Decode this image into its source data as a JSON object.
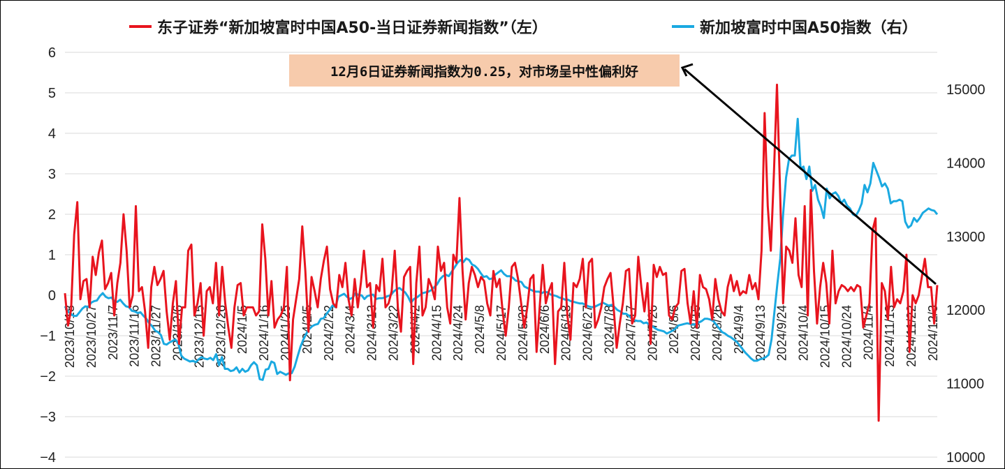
{
  "chart_data": {
    "type": "line",
    "title": "",
    "legend_position": "top",
    "grid": true,
    "annotation": "12月6日证券新闻指数为0.25，对市场呈中性偏利好",
    "y_left": {
      "ylim": [
        -4,
        6
      ],
      "ticks": [
        "6",
        "5",
        "4",
        "3",
        "2",
        "1",
        "0",
        "−1",
        "−2",
        "−3",
        "−4"
      ]
    },
    "y_right": {
      "ylim": [
        10000,
        15500
      ],
      "ticks": [
        "15000",
        "14000",
        "13000",
        "12000",
        "11000",
        "10000"
      ]
    },
    "x_tick_labels": [
      "2023/10/18",
      "2023/10/27",
      "2023/11/7",
      "2023/11/16",
      "2023/11/27",
      "2023/12/6",
      "2023/12/15",
      "2023/12/26",
      "2024/1/5",
      "2024/1/16",
      "2024/1/25",
      "2024/2/5",
      "2024/2/22",
      "2024/3/4",
      "2024/3/13",
      "2024/3/22",
      "2024/4/2",
      "2024/4/15",
      "2024/4/24",
      "2024/5/8",
      "2024/5/17",
      "2024/5/28",
      "2024/6/6",
      "2024/6/18",
      "2024/6/27",
      "2024/7/8",
      "2024/7/17",
      "2024/7/26",
      "2024/8/6",
      "2024/8/15",
      "2024/8/26",
      "2024/9/4",
      "2024/9/13",
      "2024/9/24",
      "2024/10/4",
      "2024/10/15",
      "2024/10/24",
      "2024/11/4",
      "2024/11/13",
      "2024/11/22",
      "2024/12/3"
    ],
    "series": [
      {
        "name": "东子证券“新加坡富时中国A50-当日证券新闻指数”（左）",
        "axis": "left",
        "color": "#e8141e",
        "values": [
          0.05,
          -0.75,
          -0.35,
          1.5,
          2.3,
          -0.1,
          0.35,
          0.4,
          -0.3,
          0.95,
          0.5,
          1.05,
          1.35,
          0.15,
          0.3,
          0.55,
          -0.5,
          0.3,
          0.8,
          2.0,
          1.1,
          -0.3,
          0.0,
          2.2,
          0.1,
          0.2,
          -0.4,
          -1.3,
          0.2,
          0.7,
          0.25,
          0.4,
          0.6,
          -0.4,
          -1.1,
          -0.2,
          0.35,
          -1.2,
          -0.3,
          -0.3,
          1.1,
          1.25,
          -0.5,
          -0.2,
          0.3,
          -1.0,
          0.1,
          0.2,
          -0.2,
          0.8,
          -0.5,
          0.7,
          -0.2,
          -0.8,
          -1.3,
          -0.3,
          0.25,
          0.3,
          -0.5,
          -0.3,
          -0.3,
          -0.3,
          -0.5,
          -0.4,
          1.75,
          0.9,
          -0.5,
          0.35,
          -0.8,
          -0.6,
          -0.5,
          -0.3,
          0.7,
          -2.1,
          -0.6,
          -0.1,
          0.4,
          1.7,
          0.6,
          -0.9,
          0.45,
          0.1,
          -0.3,
          0.4,
          0.85,
          1.2,
          0.15,
          -0.2,
          -0.3,
          0.5,
          0.2,
          0.8,
          -0.1,
          -0.5,
          0.4,
          -0.3,
          0.3,
          1.1,
          0.2,
          0.3,
          -0.8,
          0.25,
          0.1,
          0.9,
          -0.3,
          -0.2,
          0.1,
          1.1,
          -0.3,
          -0.9,
          0.45,
          0.6,
          0.7,
          -1.7,
          0.3,
          1.2,
          -0.5,
          -0.3,
          0.4,
          0.2,
          -0.1,
          1.2,
          0.6,
          0.8,
          -0.3,
          -0.7,
          1.0,
          0.8,
          2.4,
          0.6,
          -0.6,
          0.3,
          0.7,
          0.5,
          0.2,
          0.45,
          0.35,
          -0.2,
          -0.5,
          0.6,
          0.2,
          0.4,
          -0.4,
          -1.0,
          -0.3,
          0.7,
          0.8,
          0.4,
          -0.2,
          -0.8,
          -0.3,
          0.4,
          0.5,
          -1.4,
          -0.3,
          0.75,
          -0.2,
          0.1,
          0.3,
          -1.7,
          -0.4,
          -0.3,
          0.8,
          -0.5,
          -1.1,
          0.3,
          0.2,
          0.4,
          0.9,
          -0.3,
          0.8,
          0.9,
          -0.8,
          -0.6,
          -0.3,
          0.2,
          0.4,
          0.55,
          -0.3,
          -1.3,
          -0.7,
          -0.2,
          0.6,
          0.65,
          -0.7,
          -0.5,
          0.95,
          0.2,
          -0.4,
          0.3,
          -1.2,
          0.75,
          0.45,
          0.7,
          0.5,
          0.55,
          -0.5,
          -0.6,
          -0.3,
          -0.2,
          0.6,
          0.65,
          -0.2,
          -0.7,
          0.1,
          -0.8,
          0.5,
          0.2,
          0.15,
          -0.1,
          -0.6,
          0.4,
          -0.1,
          -0.4,
          -0.5,
          0.2,
          0.5,
          0.1,
          0.35,
          0.0,
          0.1,
          0.05,
          0.5,
          0.15,
          0.3,
          -0.1,
          1.1,
          4.5,
          2.2,
          1.1,
          3.0,
          5.2,
          2.6,
          -0.2,
          1.2,
          1.1,
          0.8,
          1.9,
          0.5,
          0.2,
          2.2,
          -0.5,
          2.6,
          0.6,
          -0.7,
          0.2,
          0.8,
          0.3,
          -0.7,
          1.1,
          -0.2,
          0.1,
          0.25,
          0.2,
          0.1,
          0.2,
          0.1,
          0.25,
          0.2,
          -0.8,
          -0.5,
          -0.2,
          1.6,
          1.9,
          -3.1,
          0.3,
          0.1,
          -0.6,
          0.7,
          -0.3,
          -0.1,
          -0.2,
          0.1,
          1.0,
          -1.4,
          0.0,
          -0.2,
          0.0,
          0.45,
          0.9,
          0.2,
          0.2,
          -0.7,
          0.25
        ]
      },
      {
        "name": "新加坡富时中国A50指数（右）",
        "axis": "right",
        "color": "#1aa9e1",
        "values": [
          12050,
          11980,
          11950,
          11920,
          11920,
          11970,
          12020,
          12050,
          12040,
          12100,
          12120,
          12130,
          12190,
          12230,
          12180,
          12160,
          12170,
          12120,
          12110,
          12140,
          12090,
          12050,
          12040,
          11990,
          11980,
          11960,
          11970,
          11920,
          11880,
          11820,
          11780,
          11720,
          11700,
          11660,
          11540,
          11530,
          11560,
          11580,
          11600,
          11540,
          11380,
          11340,
          11320,
          11300,
          11310,
          11290,
          11330,
          11360,
          11340,
          11330,
          11350,
          11320,
          11400,
          11250,
          11360,
          11200,
          11200,
          11170,
          11180,
          11220,
          11150,
          11200,
          11160,
          11180,
          11250,
          11290,
          11250,
          11060,
          11050,
          11190,
          11200,
          11300,
          11280,
          11130,
          11160,
          11140,
          11120,
          11140,
          11140,
          11230,
          11370,
          11500,
          11600,
          11680,
          11740,
          11780,
          11800,
          11810,
          11880,
          11890,
          11950,
          12000,
          12060,
          12040,
          12180,
          12200,
          12220,
          12180,
          12150,
          12170,
          12230,
          12200,
          12200,
          12150,
          12190,
          12200,
          12210,
          12150,
          12160,
          12160,
          12170,
          12190,
          12200,
          12250,
          12280,
          12300,
          12270,
          12240,
          12180,
          12100,
          12150,
          12170,
          12200,
          12230,
          12240,
          12250,
          12270,
          12310,
          12350,
          12420,
          12460,
          12480,
          12460,
          12520,
          12580,
          12640,
          12680,
          12650,
          12700,
          12680,
          12620,
          12600,
          12560,
          12500,
          12450,
          12460,
          12420,
          12430,
          12480,
          12510,
          12540,
          12490,
          12460,
          12460,
          12440,
          12400,
          12390,
          12380,
          12320,
          12300,
          12280,
          12260,
          12250,
          12250,
          12230,
          12250,
          12240,
          12210,
          12200,
          12190,
          12170,
          12160,
          12140,
          12140,
          12120,
          12110,
          12100,
          12090,
          12090,
          12070,
          12050,
          12040,
          12040,
          12060,
          12080,
          12100,
          12080,
          12060,
          12070,
          12040,
          12000,
          11980,
          11950,
          11950,
          11920,
          11880,
          11860,
          11850,
          11850,
          11820,
          11830,
          11800,
          11780,
          11750,
          11730,
          11720,
          11710,
          11680,
          11700,
          11720,
          11750,
          11790,
          11800,
          11810,
          11820,
          11810,
          11800,
          11810,
          11830,
          11850,
          11880,
          11880,
          11870,
          11850,
          11800,
          11750,
          11700,
          11680,
          11650,
          11630,
          11600,
          11570,
          11520,
          11470,
          11420,
          11380,
          11340,
          11310,
          11310,
          11330,
          11340,
          11360,
          11390,
          11600,
          11980,
          12350,
          12700,
          13300,
          13800,
          14050,
          14100,
          14100,
          14600,
          13920,
          13950,
          13780,
          13950,
          13620,
          13700,
          13500,
          13400,
          13250,
          13650,
          13520,
          13580,
          13600,
          13550,
          13450,
          13500,
          13420,
          13380,
          13300,
          13280,
          13350,
          13450,
          13700,
          13600,
          13720,
          14000,
          13900,
          13800,
          13680,
          13720,
          13650,
          13450,
          13480,
          13480,
          13500,
          13480,
          13200,
          13120,
          13150,
          13250,
          13200,
          13250,
          13320,
          13350,
          13380,
          13360,
          13350,
          13300
        ]
      }
    ]
  }
}
